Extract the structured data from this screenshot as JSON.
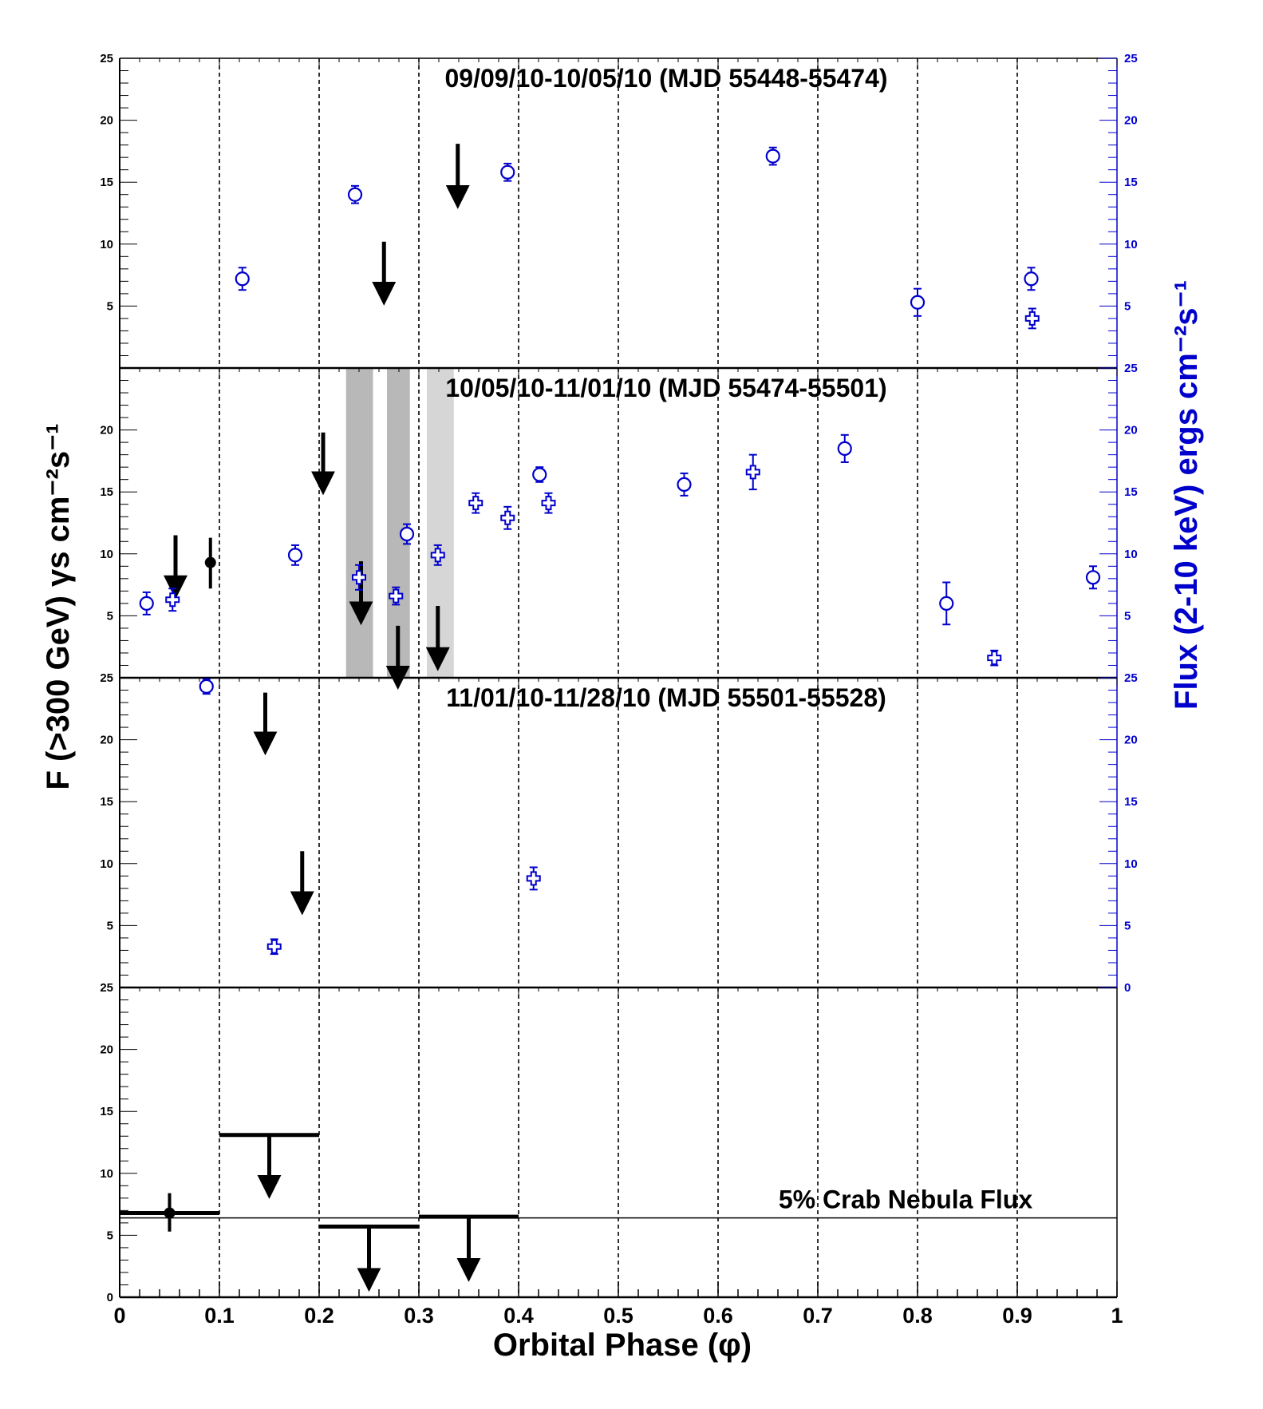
{
  "chart_data": {
    "type": "scatter",
    "xlabel": "Orbital Phase (φ)",
    "ylabel_left": "F (>300 GeV) γs cm⁻²s⁻¹",
    "ylabel_right": "Flux (2-10 keV) ergs cm⁻²s⁻¹",
    "xlim": [
      0,
      1
    ],
    "x_ticks": [
      "0",
      "0.1",
      "0.2",
      "0.3",
      "0.4",
      "0.5",
      "0.6",
      "0.7",
      "0.8",
      "0.9",
      "1"
    ],
    "colors": {
      "vhe": "#000000",
      "xray": "#0000cc",
      "band_dark": "#b8b8b8",
      "band_light": "#d6d6d6"
    },
    "panels": [
      {
        "title": "09/09/10-10/05/10 (MJD 55448-55474)",
        "ylim": [
          0,
          25
        ],
        "left_ticks": [
          "5",
          "10",
          "15",
          "20",
          "25"
        ],
        "right_ticks": [
          "5",
          "10",
          "15",
          "20",
          "25"
        ],
        "vhe_points": [],
        "vhe_upper_limits": [
          {
            "x": 0.265,
            "y": 6.0,
            "top": 10.2
          },
          {
            "x": 0.339,
            "y": 13.8,
            "top": 18.1
          }
        ],
        "xray_circles": [
          {
            "x": 0.123,
            "y": 7.2,
            "err": 0.9
          },
          {
            "x": 0.236,
            "y": 14.0,
            "err": 0.7
          },
          {
            "x": 0.389,
            "y": 15.8,
            "err": 0.7
          },
          {
            "x": 0.655,
            "y": 17.1,
            "err": 0.7
          },
          {
            "x": 0.8,
            "y": 5.3,
            "err": 1.1
          },
          {
            "x": 0.914,
            "y": 7.2,
            "err": 0.9
          }
        ],
        "xray_crosses": [
          {
            "x": 0.915,
            "y": 4.0,
            "err": 0.8
          }
        ]
      },
      {
        "title": "10/05/10-11/01/10 (MJD 55474-55501)",
        "ylim": [
          0,
          25
        ],
        "left_ticks": [
          "5",
          "10",
          "15",
          "20"
        ],
        "right_ticks": [
          "5",
          "10",
          "15",
          "20",
          "25"
        ],
        "bands": [
          {
            "x0": 0.227,
            "x1": 0.254,
            "shade": "dark"
          },
          {
            "x0": 0.268,
            "x1": 0.291,
            "shade": "dark"
          },
          {
            "x0": 0.308,
            "x1": 0.335,
            "shade": "light"
          }
        ],
        "vhe_points": [
          {
            "x": 0.091,
            "y": 9.3,
            "lo": 7.2,
            "hi": 11.3
          }
        ],
        "vhe_upper_limits": [
          {
            "x": 0.056,
            "y": 7.3,
            "top": 11.5
          },
          {
            "x": 0.204,
            "y": 15.7,
            "top": 19.8
          },
          {
            "x": 0.242,
            "y": 5.2,
            "top": 9.4
          },
          {
            "x": 0.279,
            "y": 0.0,
            "top": 4.2
          },
          {
            "x": 0.319,
            "y": 1.5,
            "top": 5.8
          }
        ],
        "xray_circles": [
          {
            "x": 0.027,
            "y": 6.0,
            "err": 0.9
          },
          {
            "x": 0.176,
            "y": 9.9,
            "err": 0.8
          },
          {
            "x": 0.288,
            "y": 11.6,
            "err": 0.8
          },
          {
            "x": 0.421,
            "y": 16.4,
            "err": 0.6
          },
          {
            "x": 0.566,
            "y": 15.6,
            "err": 0.9
          },
          {
            "x": 0.727,
            "y": 18.5,
            "err": 1.1
          },
          {
            "x": 0.829,
            "y": 6.0,
            "err": 1.7
          },
          {
            "x": 0.976,
            "y": 8.1,
            "err": 0.9
          }
        ],
        "xray_crosses": [
          {
            "x": 0.053,
            "y": 6.3,
            "err": 0.9
          },
          {
            "x": 0.24,
            "y": 8.1,
            "err": 1.0
          },
          {
            "x": 0.277,
            "y": 6.6,
            "err": 0.7
          },
          {
            "x": 0.319,
            "y": 9.9,
            "err": 0.8
          },
          {
            "x": 0.357,
            "y": 14.1,
            "err": 0.8
          },
          {
            "x": 0.389,
            "y": 12.9,
            "err": 0.9
          },
          {
            "x": 0.43,
            "y": 14.1,
            "err": 0.8
          },
          {
            "x": 0.635,
            "y": 16.6,
            "err": 1.4
          },
          {
            "x": 0.877,
            "y": 1.6,
            "err": 0.6
          }
        ]
      },
      {
        "title": "11/01/10-11/28/10 (MJD 55501-55528)",
        "ylim": [
          0,
          25
        ],
        "left_ticks": [
          "5",
          "10",
          "15",
          "20",
          "25"
        ],
        "right_ticks": [
          "0",
          "5",
          "10",
          "15",
          "20",
          "25"
        ],
        "vhe_points": [],
        "vhe_upper_limits": [
          {
            "x": 0.146,
            "y": 19.7,
            "top": 23.8
          },
          {
            "x": 0.183,
            "y": 6.8,
            "top": 11.0
          }
        ],
        "xray_circles": [
          {
            "x": 0.087,
            "y": 24.3,
            "err": 0.6
          }
        ],
        "xray_crosses": [
          {
            "x": 0.155,
            "y": 3.3,
            "err": 0.6
          },
          {
            "x": 0.415,
            "y": 8.8,
            "err": 0.9
          }
        ]
      },
      {
        "title": "",
        "ylim": [
          0,
          25
        ],
        "left_ticks": [
          "0",
          "5",
          "10",
          "15",
          "20",
          "25"
        ],
        "right_ticks": [],
        "reference_line": {
          "y": 6.4,
          "label": "5% Crab Nebula Flux"
        },
        "binned_points": [
          {
            "x0": 0.0,
            "x1": 0.1,
            "y": 6.8,
            "lo": 5.3,
            "hi": 8.4
          }
        ],
        "binned_upper_limits": [
          {
            "x0": 0.1,
            "x1": 0.2,
            "y": 13.1,
            "tip": 8.9
          },
          {
            "x0": 0.2,
            "x1": 0.3,
            "y": 5.7,
            "tip": 1.4
          },
          {
            "x0": 0.3,
            "x1": 0.4,
            "y": 6.5,
            "tip": 2.2
          }
        ]
      }
    ]
  }
}
